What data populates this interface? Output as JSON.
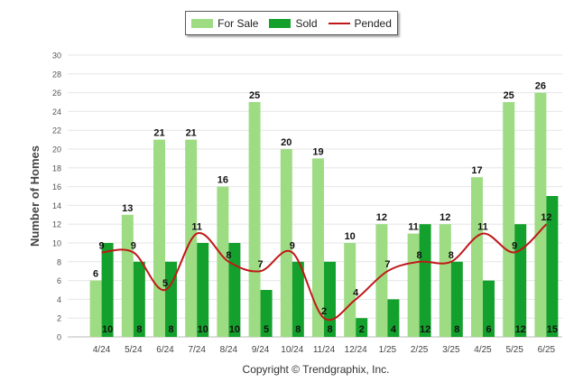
{
  "legend": [
    {
      "name": "For Sale",
      "color": "#9edc84",
      "kind": "bar"
    },
    {
      "name": "Sold",
      "color": "#14a02c",
      "kind": "bar"
    },
    {
      "name": "Pended",
      "color": "#c01818",
      "kind": "line"
    }
  ],
  "footer": "Copyright © Trendgraphix, Inc.",
  "chart_data": {
    "type": "bar",
    "ylabel": "Number of Homes",
    "ylim": [
      0,
      30
    ],
    "yticks": [
      0,
      2,
      4,
      6,
      8,
      10,
      12,
      14,
      16,
      18,
      20,
      22,
      24,
      26,
      28,
      30
    ],
    "grid": true,
    "legend_position": "top",
    "categories": [
      "4/24",
      "5/24",
      "6/24",
      "7/24",
      "8/24",
      "9/24",
      "10/24",
      "11/24",
      "12/24",
      "1/25",
      "2/25",
      "3/25",
      "4/25",
      "5/25",
      "6/25"
    ],
    "series": [
      {
        "name": "For Sale",
        "type": "bar",
        "color": "#9edc84",
        "values": [
          6,
          13,
          21,
          21,
          16,
          25,
          20,
          19,
          10,
          12,
          11,
          12,
          17,
          25,
          26
        ]
      },
      {
        "name": "Sold",
        "type": "bar",
        "color": "#14a02c",
        "values": [
          10,
          8,
          8,
          10,
          10,
          5,
          8,
          8,
          2,
          4,
          12,
          8,
          6,
          12,
          15
        ]
      },
      {
        "name": "Pended",
        "type": "line",
        "color": "#c01818",
        "values": [
          9,
          9,
          5,
          11,
          8,
          7,
          9,
          2,
          4,
          7,
          8,
          8,
          11,
          9,
          12
        ]
      }
    ]
  }
}
